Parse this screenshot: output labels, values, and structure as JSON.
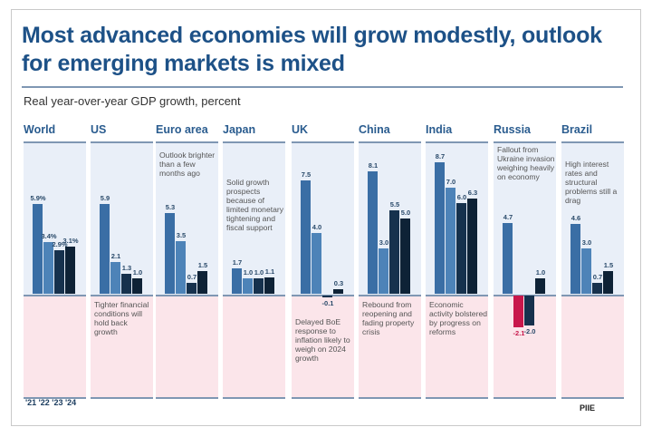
{
  "chart_data": {
    "type": "bar",
    "title": "Most advanced economies will grow modestly, outlook for emerging markets is mixed",
    "subtitle": "Real year-over-year GDP growth, percent",
    "years": [
      "'21",
      "'22",
      "'23",
      "'24"
    ],
    "years_label": "'21 '22 '23 '24",
    "ylim": [
      -2.6,
      9.2
    ],
    "grid": false,
    "colors": {
      "2021": "#3a6ea5",
      "2022": "#4d83b8",
      "2023": "#16314d",
      "2024": "#0e2236",
      "negative_highlight": "#c8174b",
      "positive_bg": "#e9eff8",
      "negative_bg": "#fbe5ea"
    },
    "panels": [
      {
        "name": "World",
        "values": [
          5.9,
          3.4,
          2.9,
          3.1
        ],
        "labels": [
          "5.9%",
          "3.4%",
          "2.9%",
          "3.1%"
        ],
        "note": "",
        "note_position": "top"
      },
      {
        "name": "US",
        "values": [
          5.9,
          2.1,
          1.3,
          1.0
        ],
        "labels": [
          "5.9",
          "2.1",
          "1.3",
          "1.0"
        ],
        "note": "Tighter financial conditions will hold back growth",
        "note_position": "bottom"
      },
      {
        "name": "Euro area",
        "values": [
          5.3,
          3.5,
          0.7,
          1.5
        ],
        "labels": [
          "5.3",
          "3.5",
          "0.7",
          "1.5"
        ],
        "note": "Outlook brighter than a few months ago",
        "note_position": "top"
      },
      {
        "name": "Japan",
        "values": [
          1.7,
          1.0,
          1.0,
          1.1
        ],
        "labels": [
          "1.7",
          "1.0",
          "1.0",
          "1.1"
        ],
        "note": "Solid growth prospects because of limited monetary tightening and fiscal support",
        "note_position": "top"
      },
      {
        "name": "UK",
        "values": [
          7.5,
          4.0,
          -0.1,
          0.3
        ],
        "labels": [
          "7.5",
          "4.0",
          "-0.1",
          "0.3"
        ],
        "note": "Delayed BoE response to inflation likely to weigh on 2024 growth",
        "note_position": "bottom"
      },
      {
        "name": "China",
        "values": [
          8.1,
          3.0,
          5.5,
          5.0
        ],
        "labels": [
          "8.1",
          "3.0",
          "5.5",
          "5.0"
        ],
        "note": "Rebound from reopening and fading property crisis",
        "note_position": "bottom"
      },
      {
        "name": "India",
        "values": [
          8.7,
          7.0,
          6.0,
          6.3
        ],
        "labels": [
          "8.7",
          "7.0",
          "6.0",
          "6.3"
        ],
        "note": "Economic activity bolstered by progress on reforms",
        "note_position": "bottom"
      },
      {
        "name": "Russia",
        "values": [
          4.7,
          -2.1,
          -2.0,
          1.0
        ],
        "labels": [
          "4.7",
          "-2.1",
          "-2.0",
          "1.0"
        ],
        "note": "Fallout from Ukraine invasion weighing heavily on economy",
        "note_position": "top"
      },
      {
        "name": "Brazil",
        "values": [
          4.6,
          3.0,
          0.7,
          1.5
        ],
        "labels": [
          "4.6",
          "3.0",
          "0.7",
          "1.5"
        ],
        "note": "High interest rates and structural problems still a drag",
        "note_position": "top"
      }
    ],
    "source": "PIIE"
  }
}
